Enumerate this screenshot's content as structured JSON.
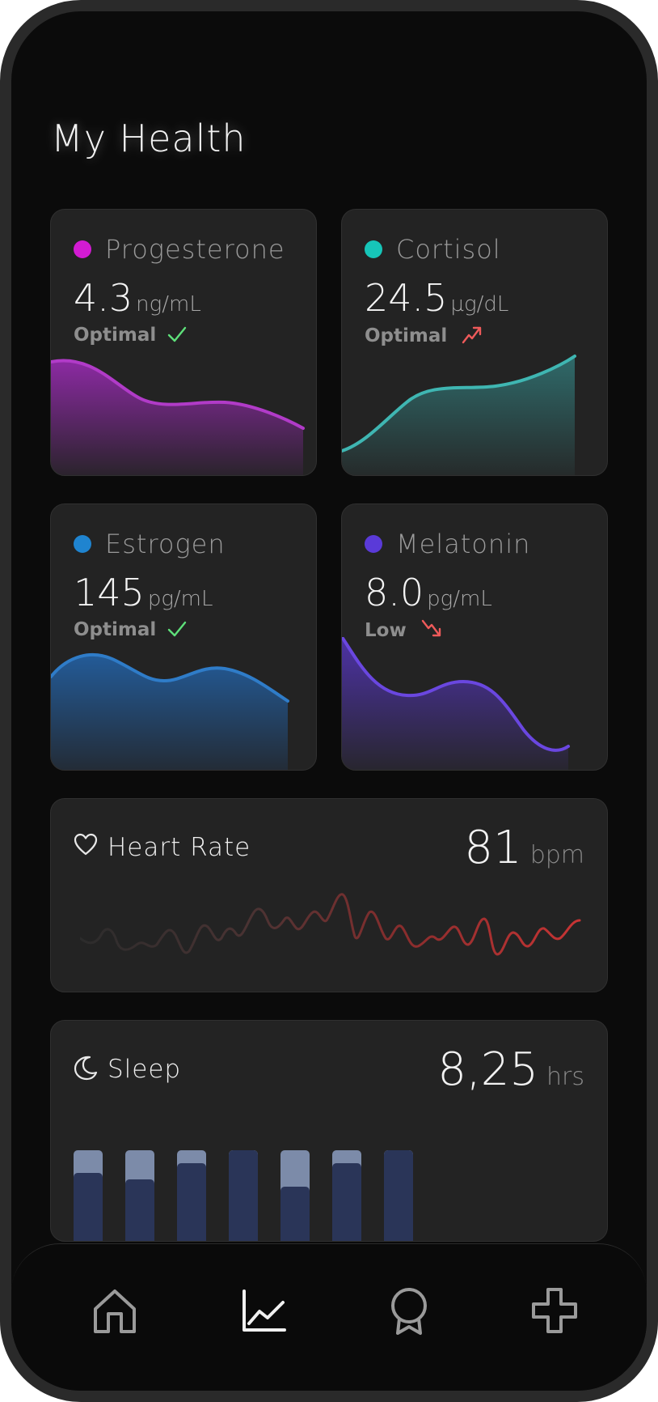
{
  "page": {
    "title": "My Health"
  },
  "hormones": [
    {
      "name": "Progesterone",
      "value": "4.3",
      "unit": "ng/mL",
      "status": "Optimal",
      "status_icon": "check-icon",
      "color": "#d21bd2",
      "fill": "#8c2aa3",
      "stroke": "#b13bc8"
    },
    {
      "name": "Cortisol",
      "value": "24.5",
      "unit": "µg/dL",
      "status": "Optimal",
      "status_icon": "trend-up-icon",
      "color": "#16c5b8",
      "fill": "#2e6466",
      "stroke": "#3fb6b2"
    },
    {
      "name": "Estrogen",
      "value": "145",
      "unit": "pg/mL",
      "status": "Optimal",
      "status_icon": "check-icon",
      "color": "#1f84d0",
      "fill": "#24568f",
      "stroke": "#2f7cc8"
    },
    {
      "name": "Melatonin",
      "value": "8.0",
      "unit": "pg/mL",
      "status": "Low",
      "status_icon": "trend-down-icon",
      "color": "#5a3ad8",
      "fill": "#4d32a6",
      "stroke": "#6a47e0"
    }
  ],
  "heart_rate": {
    "label": "Heart Rate",
    "value": "81",
    "unit": "bpm",
    "icon": "heart-icon"
  },
  "sleep": {
    "label": "Sleep",
    "value": "8,25",
    "unit": "hrs",
    "icon": "moon-icon",
    "bars": [
      {
        "total": 1.0,
        "deep": 0.75
      },
      {
        "total": 1.0,
        "deep": 0.68
      },
      {
        "total": 1.0,
        "deep": 0.86
      },
      {
        "total": 1.0,
        "deep": 1.0
      },
      {
        "total": 1.0,
        "deep": 0.6
      },
      {
        "total": 1.0,
        "deep": 0.86
      },
      {
        "total": 1.0,
        "deep": 1.0
      }
    ]
  },
  "nav": [
    {
      "icon": "home-icon",
      "active": false
    },
    {
      "icon": "chart-icon",
      "active": true
    },
    {
      "icon": "award-icon",
      "active": false
    },
    {
      "icon": "medical-cross-icon",
      "active": false
    }
  ]
}
